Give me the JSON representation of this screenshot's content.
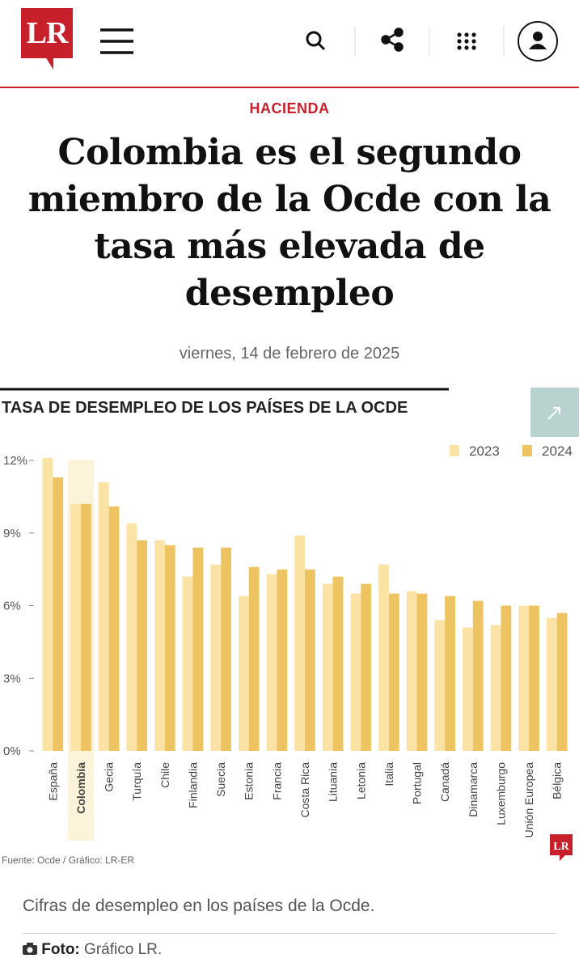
{
  "header": {
    "logo": "LR"
  },
  "article": {
    "section": "HACIENDA",
    "title": "Colombia es el segundo miembro de la Ocde con la tasa más elevada de desempleo",
    "date": "viernes, 14 de febrero de 2025",
    "caption": "Cifras de desempleo en los países de la Ocde.",
    "photo_label": "Foto:",
    "photo_credit": "Gráfico LR."
  },
  "chart_data": {
    "type": "bar",
    "title": "TASA DE DESEMPLEO DE LOS PAÍSES DE LA OCDE",
    "categories": [
      "España",
      "Colombia",
      "Gecia",
      "Turquía",
      "Chile",
      "Finlandia",
      "Suecia",
      "Estonia",
      "Francia",
      "Costa Rica",
      "Lituania",
      "Letonia",
      "Italia",
      "Portugal",
      "Canadá",
      "Dinamarca",
      "Luxemburgo",
      "Unión Europea",
      "Bélgica"
    ],
    "series": [
      {
        "name": "2023",
        "color": "#fbe3a6",
        "values": [
          12.1,
          10.2,
          11.1,
          9.4,
          8.7,
          7.2,
          7.7,
          6.4,
          7.3,
          8.9,
          6.9,
          6.5,
          7.7,
          6.6,
          5.4,
          5.1,
          5.2,
          6.0,
          5.5
        ]
      },
      {
        "name": "2024",
        "color": "#eec462",
        "values": [
          11.3,
          10.2,
          10.1,
          8.7,
          8.5,
          8.4,
          8.4,
          7.6,
          7.5,
          7.5,
          7.2,
          6.9,
          6.5,
          6.5,
          6.4,
          6.2,
          6.0,
          6.0,
          5.7
        ]
      }
    ],
    "highlight": 1,
    "ylim": [
      0,
      12
    ],
    "yticks": [
      {
        "value": 0,
        "label": "0%"
      },
      {
        "value": 3,
        "label": "3%"
      },
      {
        "value": 6,
        "label": "6%"
      },
      {
        "value": 9,
        "label": "9%"
      },
      {
        "value": 12,
        "label": "12%"
      }
    ],
    "grid": false,
    "legend": "top-right",
    "source": "Fuente: Ocde / Gráfico: LR-ER",
    "logo": "LR"
  }
}
